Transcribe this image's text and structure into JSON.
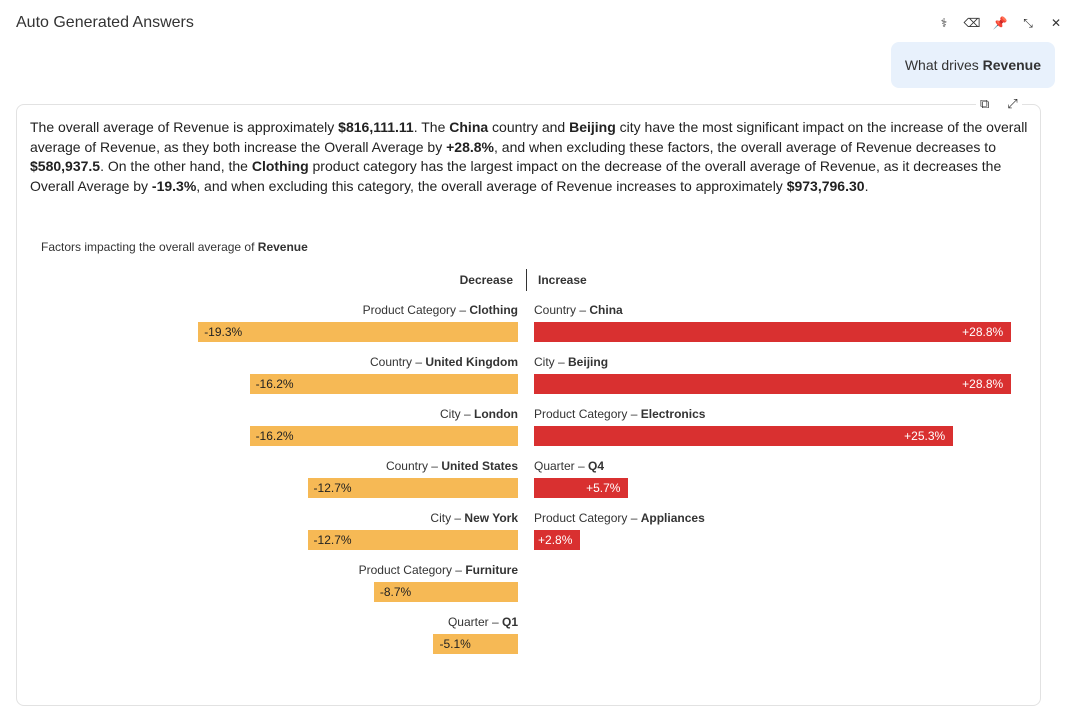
{
  "header": {
    "title": "Auto Generated Answers",
    "icons": [
      "stethoscope-icon",
      "eraser-icon",
      "pin-icon",
      "collapse-icon",
      "close-icon"
    ]
  },
  "question": {
    "prefix": "What drives ",
    "bold": "Revenue"
  },
  "answer": {
    "parts": [
      {
        "t": "The overall average of Revenue is approximately "
      },
      {
        "t": "$816,111.11",
        "b": true
      },
      {
        "t": ". The "
      },
      {
        "t": "China",
        "b": true
      },
      {
        "t": " country and "
      },
      {
        "t": "Beijing",
        "b": true
      },
      {
        "t": " city have the most significant impact on the increase of the overall average of Revenue, as they both increase the Overall Average by "
      },
      {
        "t": "+28.8%",
        "b": true
      },
      {
        "t": ", and when excluding these factors, the overall average of Revenue decreases to "
      },
      {
        "t": "$580,937.5",
        "b": true
      },
      {
        "t": ". On the other hand, the "
      },
      {
        "t": "Clothing",
        "b": true
      },
      {
        "t": " product category has the largest impact on the decrease of the overall average of Revenue, as it decreases the Overall Average by "
      },
      {
        "t": "-19.3%",
        "b": true
      },
      {
        "t": ", and when excluding this category, the overall average of Revenue increases to approximately "
      },
      {
        "t": "$973,796.30",
        "b": true
      },
      {
        "t": "."
      }
    ]
  },
  "chart": {
    "title_prefix": "Factors impacting the overall average of ",
    "title_bold": "Revenue",
    "decrease_label": "Decrease",
    "increase_label": "Increase",
    "decrease_color": "#f6b955",
    "increase_color": "#d93030",
    "decrease": [
      {
        "dim": "Product Category",
        "val": "Clothing",
        "pct": -19.3
      },
      {
        "dim": "Country",
        "val": "United Kingdom",
        "pct": -16.2
      },
      {
        "dim": "City",
        "val": "London",
        "pct": -16.2
      },
      {
        "dim": "Country",
        "val": "United States",
        "pct": -12.7
      },
      {
        "dim": "City",
        "val": "New York",
        "pct": -12.7
      },
      {
        "dim": "Product Category",
        "val": "Furniture",
        "pct": -8.7
      },
      {
        "dim": "Quarter",
        "val": "Q1",
        "pct": -5.1
      }
    ],
    "increase": [
      {
        "dim": "Country",
        "val": "China",
        "pct": 28.8
      },
      {
        "dim": "City",
        "val": "Beijing",
        "pct": 28.8
      },
      {
        "dim": "Product Category",
        "val": "Electronics",
        "pct": 25.3
      },
      {
        "dim": "Quarter",
        "val": "Q4",
        "pct": 5.7
      },
      {
        "dim": "Product Category",
        "val": "Appliances",
        "pct": 2.8
      }
    ]
  }
}
